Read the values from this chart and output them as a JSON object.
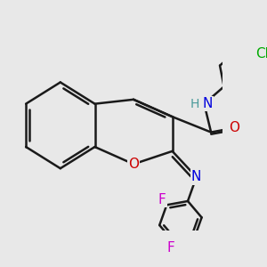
{
  "bg_color": "#e8e8e8",
  "bond_color": "#1a1a1a",
  "bond_width": 1.8,
  "atom_colors": {
    "O": "#cc0000",
    "N": "#0000dd",
    "H": "#4a9a9a",
    "F": "#cc00cc",
    "Cl": "#00aa00",
    "C": "#1a1a1a"
  },
  "font_size": 11,
  "figsize": [
    3.0,
    3.0
  ],
  "dpi": 100
}
